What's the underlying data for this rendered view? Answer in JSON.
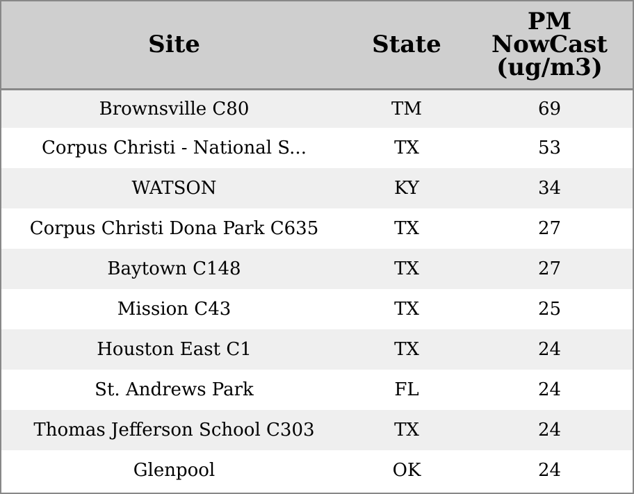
{
  "table": {
    "headers": {
      "site": "Site",
      "state": "State",
      "pm_line1": "PM",
      "pm_line2": "NowCast",
      "pm_line3": "(ug/m3)"
    },
    "rows": [
      {
        "site": "Brownsville C80",
        "state": "TM",
        "pm": "69"
      },
      {
        "site": "Corpus Christi - National S...",
        "state": "TX",
        "pm": "53"
      },
      {
        "site": "WATSON",
        "state": "KY",
        "pm": "34"
      },
      {
        "site": "Corpus Christi Dona Park C635",
        "state": "TX",
        "pm": "27"
      },
      {
        "site": "Baytown C148",
        "state": "TX",
        "pm": "27"
      },
      {
        "site": "Mission C43",
        "state": "TX",
        "pm": "25"
      },
      {
        "site": "Houston East C1",
        "state": "TX",
        "pm": "24"
      },
      {
        "site": "St. Andrews Park",
        "state": "FL",
        "pm": "24"
      },
      {
        "site": "Thomas Jefferson School C303",
        "state": "TX",
        "pm": "24"
      },
      {
        "site": "Glenpool",
        "state": "OK",
        "pm": "24"
      }
    ]
  },
  "colors": {
    "header_bg": "#cfcfcf",
    "row_alt_bg": "#efefef",
    "row_bg": "#ffffff",
    "border": "#888888"
  }
}
